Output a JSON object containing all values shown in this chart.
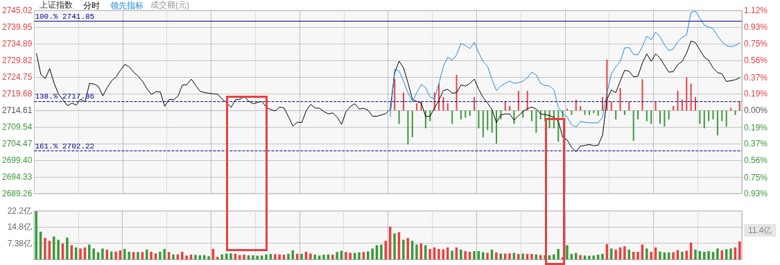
{
  "chart_data": [
    {
      "type": "line",
      "title": "上证指数",
      "subtitle": "成交额(元)",
      "legend": "top left",
      "grid": true,
      "marker": "none",
      "categories": [
        null,
        null,
        null,
        null,
        null,
        null,
        null,
        null,
        null,
        null,
        null,
        null,
        null,
        null,
        null,
        null,
        null,
        null,
        null,
        null,
        null,
        null,
        null,
        null,
        null,
        null,
        null,
        null,
        null,
        null,
        null,
        null,
        null,
        null,
        null,
        null,
        null,
        null,
        null,
        null,
        null,
        null,
        null,
        null,
        null,
        null,
        null,
        null,
        null,
        null,
        null,
        null,
        null,
        null,
        null,
        null,
        null,
        null,
        null,
        null,
        null,
        null,
        null,
        null,
        null,
        null,
        null,
        null,
        null,
        null,
        null,
        null,
        null,
        null,
        null,
        null,
        null,
        null,
        null,
        null,
        null,
        null,
        null,
        null,
        null,
        null,
        null,
        null,
        null,
        null,
        null,
        null,
        null,
        null,
        null,
        null,
        null,
        null,
        null,
        null,
        null,
        null,
        null,
        null,
        null,
        null,
        null,
        null,
        null,
        null,
        null,
        null,
        null,
        null,
        null,
        null,
        null,
        null,
        null,
        null,
        null,
        null,
        null,
        null,
        null,
        null,
        null,
        null,
        null,
        null,
        null,
        null,
        null,
        null,
        null,
        null,
        null,
        null,
        null,
        null,
        null,
        null,
        null,
        null,
        null,
        null,
        null,
        null,
        null,
        null,
        null,
        null,
        null,
        null,
        null,
        null,
        null,
        null,
        null,
        null
      ],
      "series": [
        {
          "name": "分时",
          "color": "#000000",
          "values": [
            2731.9,
            2725.5,
            2724.3,
            2727.3,
            2722.8,
            2719.5,
            2717.8,
            2716.0,
            2716.8,
            2716.2,
            2718.0,
            2717.2,
            2722.8,
            2722.6,
            2721.9,
            2719.0,
            2721.5,
            2723.6,
            2724.8,
            2726.8,
            2728.6,
            2727.8,
            2726.2,
            2725.0,
            2723.4,
            2721.2,
            2719.4,
            2720.3,
            2720.2,
            2715.8,
            2717.9,
            2717.8,
            2718.9,
            2722.3,
            2722.4,
            2724.1,
            2722.2,
            2720.4,
            2720.0,
            2719.8,
            2719.6,
            2719.5,
            2718.0,
            2716.9,
            2715.5,
            2717.8,
            2718.0,
            2718.8,
            2717.4,
            2716.6,
            2717.0,
            2717.3,
            2715.5,
            2714.8,
            2714.4,
            2715.6,
            2715.3,
            2712.6,
            2709.8,
            2711.0,
            2710.9,
            2714.5,
            2716.4,
            2715.3,
            2715.2,
            2714.2,
            2713.5,
            2713.8,
            2712.5,
            2710.3,
            2714.2,
            2715.8,
            2716.6,
            2715.0,
            2715.2,
            2714.6,
            2712.8,
            2712.8,
            2713.2,
            2713.6,
            2715.0,
            2726.0,
            2729.6,
            2727.5,
            2723.0,
            2718.0,
            2717.3,
            2716.8,
            2712.7,
            2712.8,
            2715.3,
            2717.7,
            2720.6,
            2721.0,
            2719.8,
            2720.0,
            2722.3,
            2722.0,
            2722.8,
            2724.1,
            2721.0,
            2718.5,
            2716.8,
            2714.8,
            2710.9,
            2713.2,
            2713.5,
            2713.5,
            2711.6,
            2713.0,
            2714.2,
            2715.1,
            2715.6,
            2715.0,
            2713.5,
            2713.3,
            2713.0,
            2712.5,
            2711.2,
            2706.4,
            2705.6,
            2703.3,
            2702.0,
            2703.7,
            2703.9,
            2704.2,
            2703.8,
            2704.0,
            2707.0,
            2718.0,
            2720.8,
            2720.0,
            2723.5,
            2726.8,
            2726.5,
            2724.8,
            2725.0,
            2729.0,
            2731.8,
            2729.5,
            2731.8,
            2730.5,
            2728.3,
            2726.2,
            2726.4,
            2728.5,
            2729.5,
            2732.0,
            2735.7,
            2735.2,
            2733.0,
            2730.8,
            2729.8,
            2727.5,
            2726.1,
            2725.7,
            2723.4,
            2723.6,
            2723.9,
            2724.5
          ]
        },
        {
          "name": "领先指标",
          "color": "#1e88e0",
          "values": [
            null,
            null,
            null,
            null,
            null,
            null,
            null,
            null,
            null,
            null,
            null,
            null,
            null,
            null,
            null,
            null,
            null,
            null,
            null,
            null,
            null,
            null,
            null,
            null,
            null,
            null,
            null,
            null,
            null,
            null,
            null,
            null,
            null,
            null,
            null,
            null,
            null,
            null,
            null,
            null,
            null,
            null,
            null,
            null,
            null,
            null,
            null,
            null,
            null,
            null,
            null,
            null,
            null,
            null,
            null,
            null,
            null,
            null,
            null,
            null,
            null,
            null,
            null,
            null,
            null,
            null,
            null,
            null,
            null,
            null,
            null,
            null,
            null,
            null,
            null,
            null,
            null,
            null,
            null,
            null,
            2712.7,
            2727.1,
            2726.6,
            2723.5,
            2720.0,
            2717.3,
            2720.0,
            2722.5,
            2721.5,
            2718.6,
            2718.2,
            2722.8,
            2728.0,
            2730.8,
            2729.8,
            2731.5,
            2735.0,
            2734.3,
            2733.4,
            2735.3,
            2732.2,
            2729.4,
            2728.0,
            2724.0,
            2720.6,
            2722.0,
            2722.8,
            2723.5,
            2722.8,
            2723.0,
            2723.5,
            2724.5,
            2726.2,
            2725.4,
            2722.8,
            2722.2,
            2722.0,
            2720.8,
            2715.5,
            2713.5,
            2712.6,
            2710.2,
            2709.5,
            2711.2,
            2711.0,
            2710.8,
            2710.8,
            2710.8,
            2712.5,
            2720.0,
            2725.8,
            2727.8,
            2729.5,
            2733.6,
            2733.7,
            2731.6,
            2731.5,
            2734.0,
            2737.2,
            2736.1,
            2738.4,
            2737.0,
            2734.5,
            2732.8,
            2733.3,
            2735.5,
            2736.8,
            2737.5,
            2744.4,
            2744.8,
            2742.8,
            2740.5,
            2740.0,
            2739.4,
            2737.3,
            2735.5,
            2734.3,
            2734.0,
            2734.3,
            2735.2
          ]
        },
        {
          "type": "bar",
          "axis": "y2",
          "values": [
            null,
            null,
            null,
            null,
            null,
            null,
            null,
            null,
            null,
            null,
            null,
            null,
            null,
            null,
            null,
            null,
            null,
            null,
            null,
            null,
            null,
            null,
            null,
            null,
            null,
            null,
            null,
            null,
            null,
            null,
            null,
            null,
            null,
            null,
            null,
            null,
            null,
            null,
            null,
            null,
            null,
            null,
            null,
            null,
            null,
            null,
            null,
            null,
            null,
            null,
            null,
            null,
            null,
            null,
            null,
            null,
            null,
            null,
            null,
            null,
            null,
            null,
            null,
            null,
            null,
            null,
            null,
            null,
            null,
            null,
            null,
            null,
            null,
            null,
            null,
            null,
            null,
            null,
            null,
            null,
            null,
            0.35,
            -0.15,
            0.2,
            -0.38,
            -0.3,
            0.08,
            0.1,
            -0.2,
            -0.12,
            0.2,
            0.3,
            0.15,
            0.08,
            -0.15,
            0.4,
            -0.1,
            -0.08,
            -0.06,
            0.15,
            -0.2,
            -0.3,
            -0.22,
            -0.25,
            -0.37,
            -0.1,
            0.1,
            0.05,
            -0.15,
            0.22,
            -0.08,
            0.22,
            -0.12,
            -0.25,
            -0.1,
            -0.12,
            -0.2,
            -0.2,
            -0.35,
            -0.08,
            0.02,
            -0.05,
            0.12,
            0.05,
            -0.05,
            -0.05,
            -0.03,
            -0.06,
            0.15,
            0.57,
            0.1,
            -0.1,
            0.25,
            -0.05,
            0.1,
            -0.34,
            -0.1,
            0.35,
            -0.12,
            -0.15,
            0.1,
            -0.15,
            -0.18,
            -0.1,
            0.05,
            0.22,
            0.12,
            0.37,
            0.3,
            0.15,
            -0.15,
            -0.2,
            -0.12,
            -0.1,
            -0.28,
            -0.12,
            -0.18,
            0.03,
            -0.05,
            0.1
          ],
          "colors": [
            null,
            null,
            null,
            null,
            null,
            null,
            null,
            null,
            null,
            null,
            null,
            null,
            null,
            null,
            null,
            null,
            null,
            null,
            null,
            null,
            null,
            null,
            null,
            null,
            null,
            null,
            null,
            null,
            null,
            null,
            null,
            null,
            null,
            null,
            null,
            null,
            null,
            null,
            null,
            null,
            null,
            null,
            null,
            null,
            null,
            null,
            null,
            null,
            null,
            null,
            null,
            null,
            null,
            null,
            null,
            null,
            null,
            null,
            null,
            null,
            null,
            null,
            null,
            null,
            null,
            null,
            null,
            null,
            null,
            null,
            null,
            null,
            null,
            null,
            null,
            null,
            null,
            null,
            null,
            null,
            null,
            "#e84040",
            "#3a9a3a",
            "#e84040",
            "#3a9a3a",
            "#3a9a3a",
            "#e84040",
            "#e84040",
            "#3a9a3a",
            "#3a9a3a",
            "#e84040",
            "#e84040",
            "#e84040",
            "#e84040",
            "#3a9a3a",
            "#e84040",
            "#3a9a3a",
            "#3a9a3a",
            "#3a9a3a",
            "#e84040",
            "#3a9a3a",
            "#3a9a3a",
            "#3a9a3a",
            "#3a9a3a",
            "#3a9a3a",
            "#3a9a3a",
            "#e84040",
            "#e84040",
            "#3a9a3a",
            "#e84040",
            "#3a9a3a",
            "#e84040",
            "#3a9a3a",
            "#3a9a3a",
            "#3a9a3a",
            "#3a9a3a",
            "#3a9a3a",
            "#3a9a3a",
            "#3a9a3a",
            "#3a9a3a",
            "#e84040",
            "#3a9a3a",
            "#e84040",
            "#e84040",
            "#3a9a3a",
            "#3a9a3a",
            "#3a9a3a",
            "#3a9a3a",
            "#e84040",
            "#e84040",
            "#e84040",
            "#3a9a3a",
            "#e84040",
            "#3a9a3a",
            "#e84040",
            "#3a9a3a",
            "#3a9a3a",
            "#e84040",
            "#3a9a3a",
            "#3a9a3a",
            "#e84040",
            "#3a9a3a",
            "#3a9a3a",
            "#3a9a3a",
            "#e84040",
            "#e84040",
            "#e84040",
            "#e84040",
            "#e84040",
            "#e84040",
            "#3a9a3a",
            "#3a9a3a",
            "#3a9a3a",
            "#3a9a3a",
            "#3a9a3a",
            "#3a9a3a",
            "#3a9a3a",
            "#e84040",
            "#3a9a3a",
            "#e84040"
          ]
        }
      ],
      "ylim": [
        2689.26,
        2745.02
      ],
      "yticks": [
        2689.26,
        2694.33,
        {
          "value": 2699.4,
          "label": "2699.40"
        },
        2704.47,
        2709.54,
        2714.61,
        2719.68,
        2724.75,
        2729.82,
        2734.89,
        2739.95,
        2745.02
      ],
      "y2lim": [
        -0.93,
        1.12
      ],
      "y2ticks": [
        {
          "value": -0.93,
          "label": "0.93%"
        },
        {
          "value": -0.75,
          "label": "0.75%"
        },
        {
          "value": -0.56,
          "label": "0.56%"
        },
        {
          "value": -0.37,
          "label": "0.37%"
        },
        {
          "value": -0.19,
          "label": "0.19%"
        },
        {
          "value": 0,
          "label": "0.00%"
        },
        {
          "value": 0.19,
          "label": "0.19%"
        },
        {
          "value": 0.37,
          "label": "0.37%"
        },
        {
          "value": 0.56,
          "label": "0.56%"
        },
        {
          "value": 0.75,
          "label": "0.75%"
        },
        {
          "value": 0.93,
          "label": "0.93%"
        },
        {
          "value": 1.12,
          "label": "1.12%"
        }
      ],
      "ref_lines": [
        {
          "axis": "y",
          "value": 2741.85,
          "label": "100.% 2741.85",
          "color": "#000090",
          "line_style": "solid"
        },
        {
          "axis": "y",
          "value": 2717.36,
          "label": "138.% 2717.36",
          "color": "#000090",
          "line_style": "dashed"
        },
        {
          "axis": "y",
          "value": 2702.22,
          "label": "161.% 2702.22",
          "color": "#000090",
          "line_style": "dashed"
        }
      ]
    },
    {
      "type": "bar",
      "grid": true,
      "categories": [
        null,
        null,
        null,
        null,
        null,
        null,
        null,
        null,
        null,
        null,
        null,
        null,
        null,
        null,
        null,
        null,
        null,
        null,
        null,
        null,
        null,
        null,
        null,
        null,
        null,
        null,
        null,
        null,
        null,
        null,
        null,
        null,
        null,
        null,
        null,
        null,
        null,
        null,
        null,
        null,
        null,
        null,
        null,
        null,
        null,
        null,
        null,
        null,
        null,
        null,
        null,
        null,
        null,
        null,
        null,
        null,
        null,
        null,
        null,
        null,
        null,
        null,
        null,
        null,
        null,
        null,
        null,
        null,
        null,
        null,
        null,
        null,
        null,
        null,
        null,
        null,
        null,
        null,
        null,
        null,
        null,
        null,
        null,
        null,
        null,
        null,
        null,
        null,
        null,
        null,
        null,
        null,
        null,
        null,
        null,
        null,
        null,
        null,
        null,
        null,
        null,
        null,
        null,
        null,
        null,
        null,
        null,
        null,
        null,
        null,
        null,
        null,
        null,
        null,
        null,
        null,
        null,
        null,
        null,
        null,
        null,
        null,
        null,
        null,
        null,
        null,
        null,
        null,
        null,
        null,
        null,
        null,
        null,
        null,
        null,
        null,
        null,
        null,
        null,
        null,
        null,
        null,
        null,
        null,
        null,
        null,
        null,
        null,
        null,
        null,
        null,
        null,
        null,
        null,
        null,
        null,
        null,
        null,
        null,
        null
      ],
      "values": [
        22.0,
        12.7,
        9.9,
        8.5,
        10.5,
        9.0,
        7.3,
        10.0,
        6.5,
        5.5,
        5.0,
        5.5,
        6.8,
        5.0,
        3.3,
        5.0,
        4.5,
        3.6,
        3.6,
        4.2,
        4.8,
        3.5,
        3.4,
        3.4,
        3.4,
        4.5,
        3.5,
        2.8,
        3.5,
        4.8,
        3.4,
        2.3,
        2.3,
        3.5,
        1.8,
        2.2,
        2.1,
        1.9,
        2.0,
        1.5,
        4.8,
        1.2,
        2.3,
        2.7,
        2.8,
        2.6,
        2.0,
        2.2,
        1.9,
        1.9,
        1.7,
        1.8,
        2.3,
        2.5,
        2.4,
        2.3,
        2.2,
        2.6,
        4.2,
        2.6,
        2.6,
        3.5,
        2.7,
        2.2,
        1.8,
        2.2,
        2.3,
        2.2,
        3.4,
        4.0,
        3.4,
        3.0,
        3.0,
        3.2,
        3.4,
        3.7,
        5.0,
        6.5,
        6.8,
        8.5,
        15.0,
        11.9,
        12.5,
        9.0,
        9.8,
        8.5,
        6.8,
        7.3,
        6.5,
        4.8,
        5.5,
        4.8,
        4.6,
        5.5,
        4.0,
        5.5,
        4.5,
        3.8,
        3.5,
        3.8,
        3.8,
        3.3,
        3.0,
        4.5,
        3.2,
        2.7,
        2.7,
        2.8,
        3.0,
        2.5,
        2.7,
        2.5,
        2.5,
        2.3,
        2.0,
        1.9,
        1.9,
        2.3,
        4.8,
        1.0,
        6.5,
        2.5,
        3.0,
        2.0,
        1.8,
        1.7,
        1.8,
        2.2,
        2.6,
        7.0,
        5.0,
        4.5,
        5.5,
        6.0,
        4.5,
        3.5,
        3.5,
        6.8,
        5.0,
        3.5,
        5.5,
        3.6,
        3.2,
        3.2,
        3.3,
        4.3,
        3.5,
        4.0,
        7.7,
        4.5,
        3.8,
        3.5,
        3.8,
        3.4,
        5.0,
        4.2,
        4.7,
        5.0,
        5.5,
        8.2
      ],
      "colors": [
        "#3a9a3a",
        "#3a9a3a",
        "#e84040",
        "#e84040",
        "#3a9a3a",
        "#3a9a3a",
        "#e84040",
        "#3a9a3a",
        "#e84040",
        "#3a9a3a",
        "#e84040",
        "#e84040",
        "#3a9a3a",
        "#3a9a3a",
        "#3a9a3a",
        "#3a9a3a",
        "#e84040",
        "#3a9a3a",
        "#e84040",
        "#e84040",
        "#3a9a3a",
        "#3a9a3a",
        "#e84040",
        "#3a9a3a",
        "#e84040",
        "#3a9a3a",
        "#e84040",
        "#e84040",
        "#3a9a3a",
        "#3a9a3a",
        "#e84040",
        "#3a9a3a",
        "#e84040",
        "#e84040",
        "#e84040",
        "#e84040",
        "#3a9a3a",
        "#3a9a3a",
        "#3a9a3a",
        "#3a9a3a",
        "#e84040",
        "#e84040",
        "#3a9a3a",
        "#3a9a3a",
        "#3a9a3a",
        "#e84040",
        "#e84040",
        "#e84040",
        "#3a9a3a",
        "#3a9a3a",
        "#3a9a3a",
        "#3a9a3a",
        "#3a9a3a",
        "#3a9a3a",
        "#e84040",
        "#e84040",
        "#e84040",
        "#3a9a3a",
        "#3a9a3a",
        "#e84040",
        "#3a9a3a",
        "#e84040",
        "#e84040",
        "#3a9a3a",
        "#3a9a3a",
        "#3a9a3a",
        "#3a9a3a",
        "#e84040",
        "#3a9a3a",
        "#3a9a3a",
        "#e84040",
        "#e84040",
        "#3a9a3a",
        "#3a9a3a",
        "#e84040",
        "#3a9a3a",
        "#3a9a3a",
        "#3a9a3a",
        "#3a9a3a",
        "#e84040",
        "#e84040",
        "#3a9a3a",
        "#e84040",
        "#3a9a3a",
        "#e84040",
        "#3a9a3a",
        "#3a9a3a",
        "#e84040",
        "#3a9a3a",
        "#e84040",
        "#e84040",
        "#e84040",
        "#e84040",
        "#e84040",
        "#3a9a3a",
        "#e84040",
        "#3a9a3a",
        "#e84040",
        "#e84040",
        "#3a9a3a",
        "#3a9a3a",
        "#3a9a3a",
        "#e84040",
        "#3a9a3a",
        "#e84040",
        "#3a9a3a",
        "#e84040",
        "#e84040",
        "#3a9a3a",
        "#e84040",
        "#3a9a3a",
        "#e84040",
        "#e84040",
        "#3a9a3a",
        "#e84040",
        "#3a9a3a",
        "#3a9a3a",
        "#3a9a3a",
        "#3a9a3a",
        "#e84040",
        "#3a9a3a",
        "#3a9a3a",
        "#3a9a3a",
        "#e84040",
        "#3a9a3a",
        "#3a9a3a",
        "#3a9a3a",
        "#3a9a3a",
        "#3a9a3a",
        "#e84040",
        "#3a9a3a",
        "#e84040",
        "#e84040",
        "#e84040",
        "#3a9a3a",
        "#e84040",
        "#e84040",
        "#e84040",
        "#3a9a3a",
        "#e84040",
        "#e84040",
        "#3a9a3a",
        "#3a9a3a",
        "#3a9a3a",
        "#e84040",
        "#e84040",
        "#3a9a3a",
        "#e84040",
        "#e84040",
        "#3a9a3a",
        "#3a9a3a",
        "#3a9a3a",
        "#3a9a3a",
        "#3a9a3a",
        "#3a9a3a",
        "#e84040",
        "#3a9a3a",
        "#3a9a3a",
        "#e84040",
        "#e84040"
      ],
      "ylim": [
        0,
        22.2
      ],
      "yticks": [
        {
          "value": 7.38,
          "label": "7.38亿"
        },
        {
          "value": 14.8,
          "label": "14.8亿"
        },
        {
          "value": 22.2,
          "label": "22.2亿"
        }
      ],
      "annotations": [
        "11.4亿"
      ]
    }
  ]
}
